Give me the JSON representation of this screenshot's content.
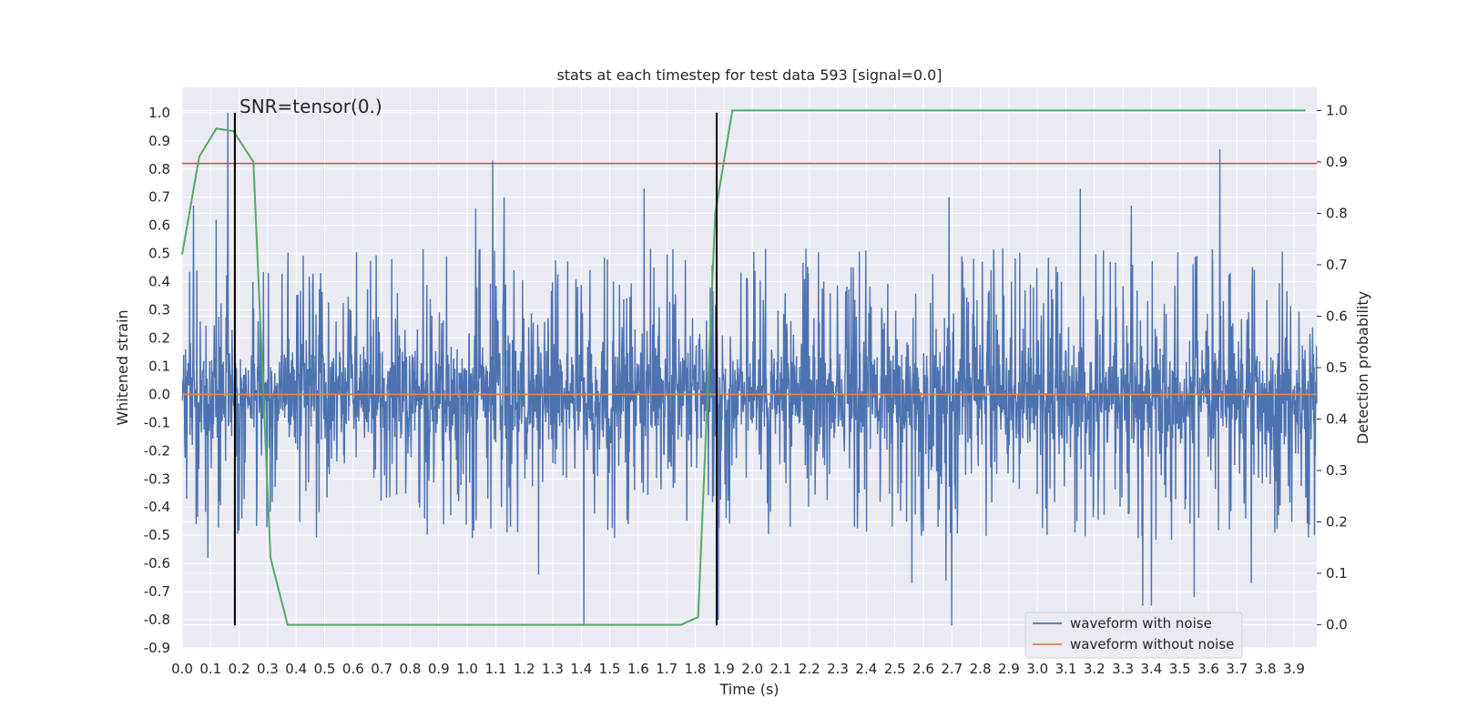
{
  "chart_data": {
    "type": "line",
    "title": "stats at each timestep for test data 593 [signal=0.0]",
    "xlabel": "Time (s)",
    "ylabel": "Whitened strain",
    "y2label": "Detection probability",
    "xlim": [
      0.0,
      3.98
    ],
    "ylim": [
      -0.9,
      1.09
    ],
    "y2lim": [
      -0.045,
      1.045
    ],
    "x_ticks": [
      "0.0",
      "0.1",
      "0.2",
      "0.3",
      "0.4",
      "0.5",
      "0.6",
      "0.7",
      "0.8",
      "0.9",
      "1.0",
      "1.1",
      "1.2",
      "1.3",
      "1.4",
      "1.5",
      "1.6",
      "1.7",
      "1.8",
      "1.9",
      "2.0",
      "2.1",
      "2.2",
      "2.3",
      "2.4",
      "2.5",
      "2.6",
      "2.7",
      "2.8",
      "2.9",
      "3.0",
      "3.1",
      "3.2",
      "3.3",
      "3.4",
      "3.5",
      "3.6",
      "3.7",
      "3.8",
      "3.9"
    ],
    "y_ticks": [
      "-0.9",
      "-0.8",
      "-0.7",
      "-0.6",
      "-0.5",
      "-0.4",
      "-0.3",
      "-0.2",
      "-0.1",
      "0.0",
      "0.1",
      "0.2",
      "0.3",
      "0.4",
      "0.5",
      "0.6",
      "0.7",
      "0.8",
      "0.9",
      "1.0"
    ],
    "y2_ticks": [
      "0.0",
      "0.1",
      "0.2",
      "0.3",
      "0.4",
      "0.5",
      "0.6",
      "0.7",
      "0.8",
      "0.9",
      "1.0"
    ],
    "grid": true,
    "legend_position": "lower-right",
    "annotation": "SNR=tensor(0.)",
    "series": [
      {
        "name": "waveform with noise",
        "color": "#4c72b0",
        "axis": "left",
        "kind": "noise",
        "t_start": 0.0,
        "t_end": 3.98,
        "samples": 3000,
        "core_amplitude": 0.13,
        "burst_amplitude": 0.32,
        "spikes": [
          {
            "x": 0.16,
            "y": 1.0
          },
          {
            "x": 0.04,
            "y": 0.67
          },
          {
            "x": 0.12,
            "y": 0.62
          },
          {
            "x": 1.09,
            "y": 0.83
          },
          {
            "x": 1.13,
            "y": 0.7
          },
          {
            "x": 1.03,
            "y": 0.66
          },
          {
            "x": 1.62,
            "y": 0.73
          },
          {
            "x": 2.69,
            "y": 0.7
          },
          {
            "x": 3.15,
            "y": 0.73
          },
          {
            "x": 3.64,
            "y": 0.87
          },
          {
            "x": 3.33,
            "y": 0.67
          },
          {
            "x": 0.21,
            "y": -0.44
          },
          {
            "x": 1.25,
            "y": -0.64
          },
          {
            "x": 1.41,
            "y": -0.82
          },
          {
            "x": 1.88,
            "y": -0.8
          },
          {
            "x": 2.56,
            "y": -0.67
          },
          {
            "x": 2.7,
            "y": -0.82
          },
          {
            "x": 2.68,
            "y": -0.66
          },
          {
            "x": 3.37,
            "y": -0.75
          },
          {
            "x": 3.4,
            "y": -0.75
          },
          {
            "x": 3.55,
            "y": -0.72
          },
          {
            "x": 3.75,
            "y": -0.67
          },
          {
            "x": 0.09,
            "y": -0.58
          }
        ]
      },
      {
        "name": "waveform without noise",
        "color": "#dd8452",
        "axis": "left",
        "x": [
          0.0,
          3.98
        ],
        "y": [
          0.0,
          0.0
        ]
      },
      {
        "name": "detection probability",
        "color": "#55a868",
        "axis": "right",
        "x": [
          0.0,
          0.06,
          0.12,
          0.18,
          0.25,
          0.31,
          0.37,
          1.75,
          1.81,
          1.87,
          1.93,
          3.94
        ],
        "y": [
          0.72,
          0.91,
          0.965,
          0.96,
          0.9,
          0.13,
          0.0,
          0.0,
          0.015,
          0.8,
          1.0,
          1.0
        ]
      }
    ],
    "threshold": {
      "value": 0.82,
      "axis": "left",
      "color": "#c44e52"
    },
    "vlines": [
      {
        "x": 0.185,
        "y_from": -0.82,
        "y_to": 1.0,
        "color": "#000000"
      },
      {
        "x": 1.875,
        "y_from": -0.82,
        "y_to": 1.0,
        "color": "#000000"
      }
    ]
  }
}
